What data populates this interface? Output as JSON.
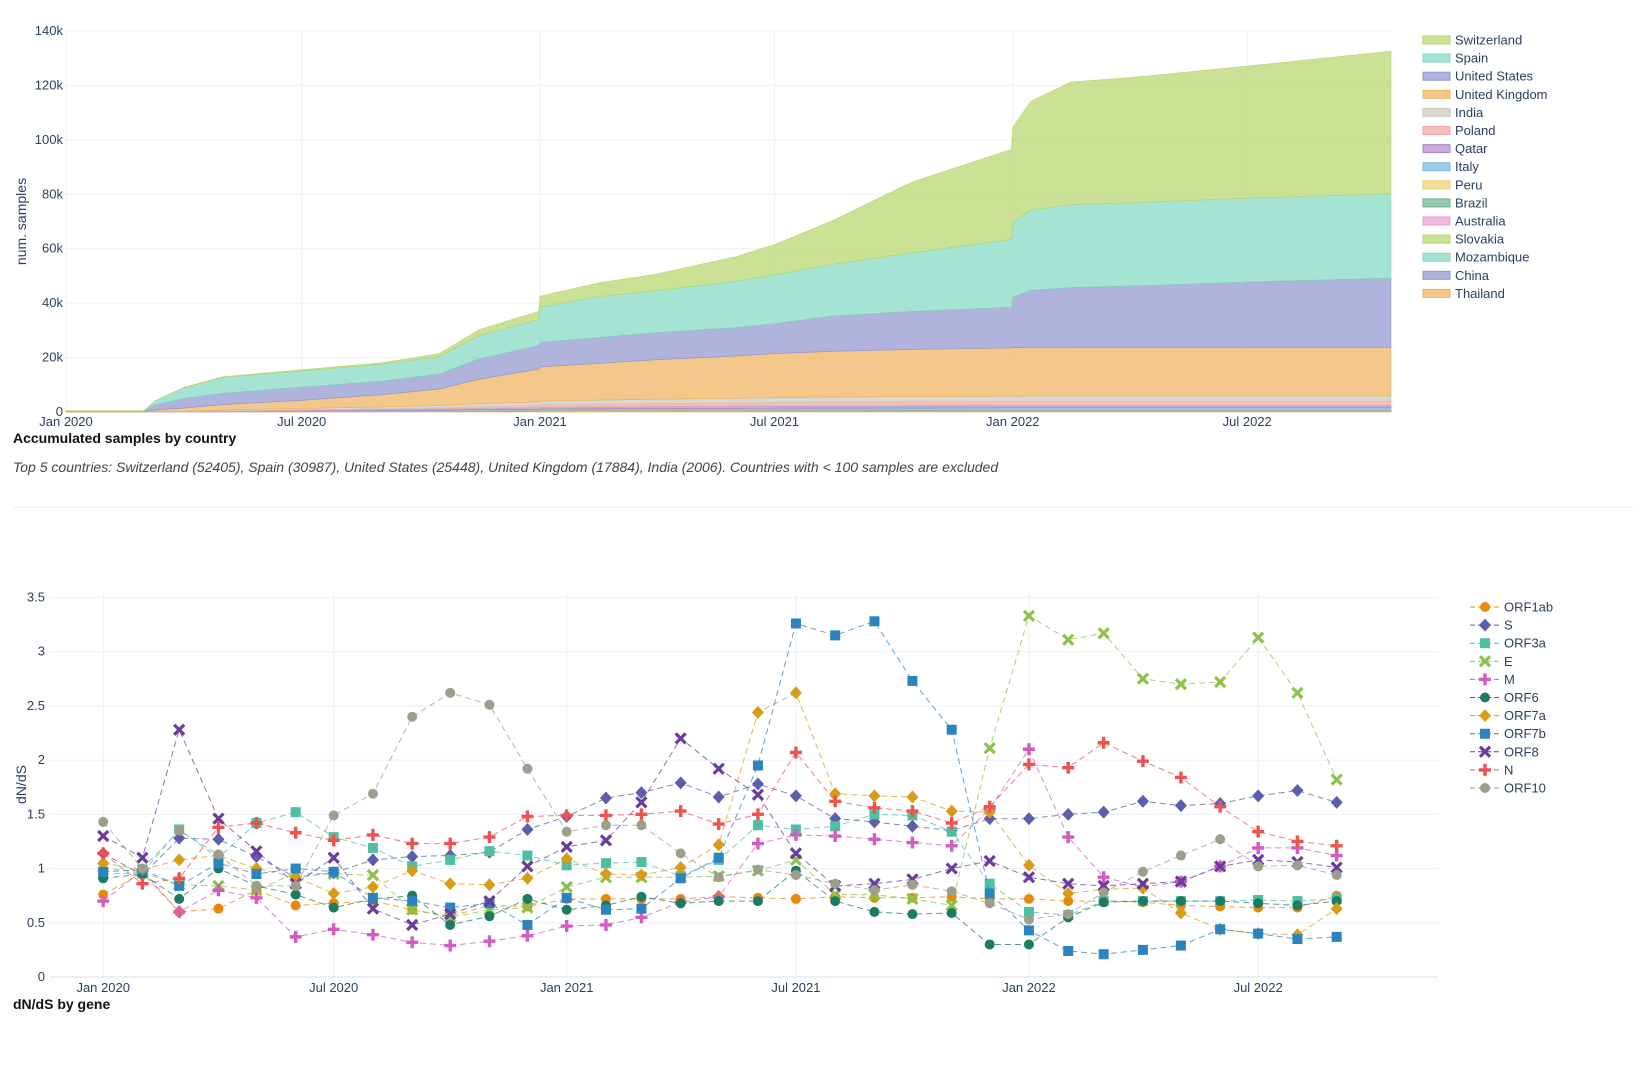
{
  "chart_data": [
    {
      "type": "area",
      "title": "Accumulated samples by country",
      "subtitle": "Top 5 countries: Switzerland (52405), Spain (30987), United States (25448), United Kingdom (17884), India (2006). Countries with < 100 samples are excluded",
      "xlabel": "",
      "ylabel": "num. samples",
      "xlim": [
        "2020-01-01",
        "2022-10-20"
      ],
      "ylim": [
        0,
        140000
      ],
      "x_ticks": [
        "Jan 2020",
        "Jul 2020",
        "Jan 2021",
        "Jul 2021",
        "Jan 2022",
        "Jul 2022"
      ],
      "y_ticks": [
        "0",
        "20k",
        "40k",
        "60k",
        "80k",
        "100k",
        "120k",
        "140k"
      ],
      "grid": true,
      "stacked": true,
      "legend_position": "right",
      "x": [
        "2020-01-01",
        "2020-03-01",
        "2020-03-10",
        "2020-04-01",
        "2020-05-01",
        "2020-07-01",
        "2020-09-01",
        "2020-10-15",
        "2020-11-15",
        "2020-12-31",
        "2021-01-01",
        "2021-02-15",
        "2021-04-01",
        "2021-06-01",
        "2021-07-01",
        "2021-08-15",
        "2021-10-15",
        "2021-12-31",
        "2022-01-01",
        "2022-01-15",
        "2022-02-15",
        "2022-04-01",
        "2022-07-01",
        "2022-10-20"
      ],
      "series": [
        {
          "name": "Switzerland",
          "color": "#b5d56a",
          "values": [
            0,
            0,
            0,
            100,
            200,
            400,
            500,
            1000,
            2200,
            3000,
            4000,
            5000,
            6000,
            9000,
            11000,
            16000,
            26000,
            33000,
            35000,
            40000,
            45000,
            46000,
            48500,
            52405
          ]
        },
        {
          "name": "Spain",
          "color": "#7fd8c0",
          "values": [
            200,
            200,
            1500,
            4000,
            5800,
            6000,
            6200,
            6500,
            8500,
            9600,
            13000,
            15000,
            15500,
            17000,
            18000,
            19000,
            21500,
            25000,
            27500,
            29500,
            30500,
            30600,
            30800,
            30987
          ]
        },
        {
          "name": "United States",
          "color": "#8f94cf",
          "values": [
            100,
            100,
            2000,
            3500,
            4200,
            4800,
            5000,
            5500,
            7500,
            8700,
            9000,
            9500,
            10000,
            10500,
            11000,
            13000,
            14000,
            15000,
            18500,
            21000,
            22000,
            22500,
            24000,
            25448
          ]
        },
        {
          "name": "United Kingdom",
          "color": "#efb058",
          "values": [
            100,
            100,
            600,
            1200,
            2000,
            3000,
            4500,
            6000,
            9000,
            12000,
            12500,
            13500,
            14500,
            15500,
            16200,
            16800,
            17300,
            17700,
            17800,
            17850,
            17870,
            17880,
            17884,
            17884
          ]
        },
        {
          "name": "India",
          "color": "#c9c8bd",
          "values": [
            0,
            0,
            0,
            100,
            300,
            500,
            700,
            900,
            1100,
            1300,
            1400,
            1500,
            1600,
            1700,
            1800,
            1900,
            1950,
            1980,
            1990,
            2000,
            2003,
            2005,
            2006,
            2006
          ]
        },
        {
          "name": "Poland",
          "color": "#f3a3a3",
          "values": [
            0,
            0,
            0,
            0,
            100,
            200,
            300,
            400,
            600,
            800,
            900,
            1000,
            1100,
            1200,
            1250,
            1300,
            1350,
            1380,
            1390,
            1400,
            1400,
            1400,
            1400,
            1400
          ]
        },
        {
          "name": "Qatar",
          "color": "#b087c8",
          "values": [
            0,
            0,
            0,
            0,
            100,
            200,
            300,
            400,
            500,
            600,
            650,
            700,
            750,
            800,
            820,
            840,
            860,
            880,
            890,
            900,
            900,
            900,
            900,
            900
          ]
        },
        {
          "name": "Italy",
          "color": "#76b7e0",
          "values": [
            0,
            0,
            0,
            0,
            50,
            100,
            150,
            200,
            250,
            300,
            320,
            340,
            360,
            380,
            390,
            400,
            410,
            420,
            420,
            420,
            420,
            420,
            420,
            420
          ]
        },
        {
          "name": "Peru",
          "color": "#ecce73",
          "values": [
            0,
            0,
            0,
            0,
            0,
            50,
            80,
            100,
            130,
            160,
            180,
            200,
            220,
            240,
            250,
            260,
            270,
            280,
            280,
            280,
            280,
            280,
            280,
            280
          ]
        },
        {
          "name": "Brazil",
          "color": "#6fb292",
          "values": [
            0,
            0,
            0,
            0,
            0,
            30,
            50,
            80,
            100,
            120,
            130,
            140,
            150,
            160,
            170,
            180,
            190,
            200,
            200,
            200,
            200,
            200,
            200,
            200
          ]
        },
        {
          "name": "Australia",
          "color": "#ee9ad0",
          "values": [
            0,
            0,
            0,
            0,
            0,
            20,
            40,
            60,
            80,
            100,
            110,
            120,
            130,
            140,
            150,
            160,
            170,
            180,
            180,
            180,
            180,
            180,
            180,
            180
          ]
        },
        {
          "name": "Slovakia",
          "color": "#b5d56a",
          "values": [
            0,
            0,
            0,
            0,
            0,
            10,
            20,
            30,
            40,
            50,
            60,
            70,
            80,
            90,
            100,
            110,
            120,
            130,
            130,
            130,
            130,
            130,
            130,
            130
          ]
        },
        {
          "name": "Mozambique",
          "color": "#7fd8c0",
          "values": [
            0,
            0,
            0,
            0,
            0,
            10,
            20,
            30,
            40,
            50,
            60,
            70,
            80,
            90,
            100,
            110,
            120,
            125,
            125,
            125,
            125,
            125,
            125,
            125
          ]
        },
        {
          "name": "China",
          "color": "#8f94cf",
          "values": [
            50,
            50,
            80,
            100,
            110,
            115,
            118,
            120,
            120,
            120,
            120,
            120,
            120,
            120,
            120,
            120,
            120,
            120,
            120,
            120,
            120,
            120,
            120,
            120
          ]
        },
        {
          "name": "Thailand",
          "color": "#efb058",
          "values": [
            0,
            0,
            20,
            40,
            60,
            80,
            90,
            100,
            105,
            110,
            110,
            110,
            110,
            110,
            110,
            110,
            110,
            110,
            110,
            110,
            110,
            110,
            110,
            110
          ]
        }
      ]
    },
    {
      "type": "line",
      "title": "dN/dS by gene",
      "xlabel": "",
      "ylabel": "dN/dS",
      "xlim": [
        "2019-11-20",
        "2022-11-20"
      ],
      "ylim": [
        0,
        3.55
      ],
      "x_ticks": [
        "Jan 2020",
        "Jul 2020",
        "Jan 2021",
        "Jul 2021",
        "Jan 2022",
        "Jul 2022"
      ],
      "y_ticks": [
        "0",
        "0.5",
        "1",
        "1.5",
        "2",
        "2.5",
        "3",
        "3.5"
      ],
      "grid": true,
      "line_style": "dashed",
      "legend_position": "right",
      "x": [
        "2020-01-01",
        "2020-02-01",
        "2020-03-01",
        "2020-04-01",
        "2020-05-01",
        "2020-06-01",
        "2020-07-01",
        "2020-08-01",
        "2020-09-01",
        "2020-10-01",
        "2020-11-01",
        "2020-12-01",
        "2021-01-01",
        "2021-02-01",
        "2021-03-01",
        "2021-04-01",
        "2021-05-01",
        "2021-06-01",
        "2021-07-01",
        "2021-08-01",
        "2021-09-01",
        "2021-10-01",
        "2021-11-01",
        "2021-12-01",
        "2022-01-01",
        "2022-02-01",
        "2022-03-01",
        "2022-04-01",
        "2022-05-01",
        "2022-06-01",
        "2022-07-01",
        "2022-08-01",
        "2022-09-01"
      ],
      "series": [
        {
          "name": "ORF1ab",
          "color": "#e8890c",
          "marker": "circle",
          "values": [
            0.76,
            0.96,
            0.6,
            0.63,
            0.8,
            0.66,
            0.68,
            0.7,
            0.62,
            0.56,
            0.66,
            0.65,
            0.72,
            0.72,
            0.72,
            0.72,
            0.74,
            0.73,
            0.72,
            0.74,
            0.73,
            0.73,
            0.74,
            0.72,
            0.72,
            0.7,
            0.7,
            0.69,
            0.66,
            0.65,
            0.64,
            0.64,
            0.75
          ]
        },
        {
          "name": "S",
          "color": "#5c5ead",
          "marker": "diamond",
          "values": [
            1.14,
            0.94,
            1.28,
            1.27,
            1.11,
            0.92,
            0.96,
            1.08,
            1.11,
            1.12,
            1.15,
            1.36,
            1.48,
            1.65,
            1.7,
            1.79,
            1.66,
            1.78,
            1.67,
            1.46,
            1.43,
            1.39,
            1.35,
            1.46,
            1.46,
            1.5,
            1.52,
            1.62,
            1.58,
            1.6,
            1.67,
            1.72,
            1.61
          ]
        },
        {
          "name": "ORF3a",
          "color": "#4cc0a0",
          "marker": "square",
          "values": [
            0.95,
            0.96,
            1.36,
            1.1,
            1.42,
            1.52,
            1.29,
            1.19,
            1.02,
            1.08,
            1.16,
            1.12,
            1.03,
            1.05,
            1.06,
            0.93,
            1.08,
            1.4,
            1.36,
            1.39,
            1.5,
            1.49,
            1.34,
            0.86,
            0.6,
            0.57,
            0.7,
            0.7,
            0.7,
            0.7,
            0.71,
            0.7,
            0.72
          ]
        },
        {
          "name": "E",
          "color": "#8bc34a",
          "marker": "x",
          "values": [
            1.01,
            0.96,
            0.85,
            0.84,
            0.8,
            0.96,
            0.95,
            0.94,
            0.62,
            0.55,
            0.62,
            0.64,
            0.83,
            0.92,
            0.92,
            0.92,
            0.93,
            0.98,
            1.08,
            0.76,
            0.76,
            0.72,
            0.66,
            2.11,
            3.33,
            3.11,
            3.17,
            2.75,
            2.7,
            2.72,
            3.13,
            2.62,
            1.82
          ]
        },
        {
          "name": "M",
          "color": "#d35cc0",
          "marker": "plus",
          "values": [
            0.7,
            0.98,
            0.6,
            0.8,
            0.73,
            0.37,
            0.44,
            0.39,
            0.32,
            0.29,
            0.33,
            0.38,
            0.47,
            0.48,
            0.55,
            0.69,
            0.74,
            1.23,
            1.31,
            1.3,
            1.27,
            1.24,
            1.21,
            1.55,
            2.1,
            1.29,
            0.92,
            0.83,
            0.88,
            1.02,
            1.19,
            1.19,
            1.12
          ]
        },
        {
          "name": "ORF6",
          "color": "#1d7a64",
          "marker": "circle",
          "values": [
            0.91,
            0.95,
            0.72,
            1.0,
            0.84,
            0.76,
            0.64,
            0.72,
            0.75,
            0.48,
            0.56,
            0.72,
            0.62,
            0.66,
            0.74,
            0.68,
            0.7,
            0.7,
            0.98,
            0.7,
            0.6,
            0.58,
            0.59,
            0.3,
            0.3,
            0.55,
            0.69,
            0.7,
            0.7,
            0.7,
            0.68,
            0.66,
            0.7
          ]
        },
        {
          "name": "ORF7a",
          "color": "#d99c16",
          "marker": "diamond",
          "values": [
            1.05,
            0.99,
            1.08,
            1.12,
            1.0,
            0.92,
            0.77,
            0.83,
            0.98,
            0.86,
            0.85,
            0.91,
            1.09,
            0.95,
            0.94,
            1.01,
            1.22,
            2.44,
            2.62,
            1.69,
            1.67,
            1.66,
            1.53,
            1.52,
            1.03,
            0.77,
            0.81,
            0.82,
            0.59,
            0.44,
            0.4,
            0.39,
            0.63
          ]
        },
        {
          "name": "ORF7b",
          "color": "#2b83c0",
          "marker": "square",
          "values": [
            0.97,
            0.99,
            0.84,
            1.05,
            0.95,
            1.0,
            0.97,
            0.73,
            0.7,
            0.64,
            0.68,
            0.48,
            0.73,
            0.62,
            0.63,
            0.91,
            1.1,
            1.95,
            3.26,
            3.15,
            3.28,
            2.73,
            2.28,
            0.77,
            0.43,
            0.24,
            0.21,
            0.25,
            0.29,
            0.44,
            0.4,
            0.35,
            0.37
          ]
        },
        {
          "name": "ORF8",
          "color": "#6a3c9c",
          "marker": "x",
          "values": [
            1.3,
            1.1,
            2.28,
            1.46,
            1.16,
            0.86,
            1.1,
            0.63,
            0.48,
            0.58,
            0.7,
            1.02,
            1.2,
            1.26,
            1.61,
            2.2,
            1.92,
            1.68,
            1.14,
            0.84,
            0.86,
            0.9,
            1.0,
            1.07,
            0.92,
            0.86,
            0.84,
            0.86,
            0.88,
            1.02,
            1.08,
            1.06,
            1.01
          ]
        },
        {
          "name": "N",
          "color": "#ef5350",
          "marker": "plus",
          "values": [
            1.14,
            0.86,
            0.91,
            1.38,
            1.42,
            1.33,
            1.26,
            1.31,
            1.23,
            1.23,
            1.29,
            1.48,
            1.49,
            1.49,
            1.5,
            1.53,
            1.41,
            1.5,
            2.07,
            1.62,
            1.56,
            1.53,
            1.42,
            1.57,
            1.96,
            1.93,
            2.16,
            1.99,
            1.84,
            1.57,
            1.34,
            1.25,
            1.21
          ]
        },
        {
          "name": "ORF10",
          "color": "#9e9e8c",
          "marker": "circle",
          "values": [
            1.43,
            1.0,
            1.35,
            1.13,
            0.84,
            0.84,
            1.49,
            1.69,
            2.4,
            2.62,
            2.51,
            1.92,
            1.34,
            1.4,
            1.4,
            1.14,
            0.92,
            0.99,
            0.94,
            0.86,
            0.8,
            0.85,
            0.79,
            0.68,
            0.53,
            0.58,
            0.78,
            0.97,
            1.12,
            1.27,
            1.02,
            1.03,
            0.94
          ]
        }
      ]
    }
  ]
}
